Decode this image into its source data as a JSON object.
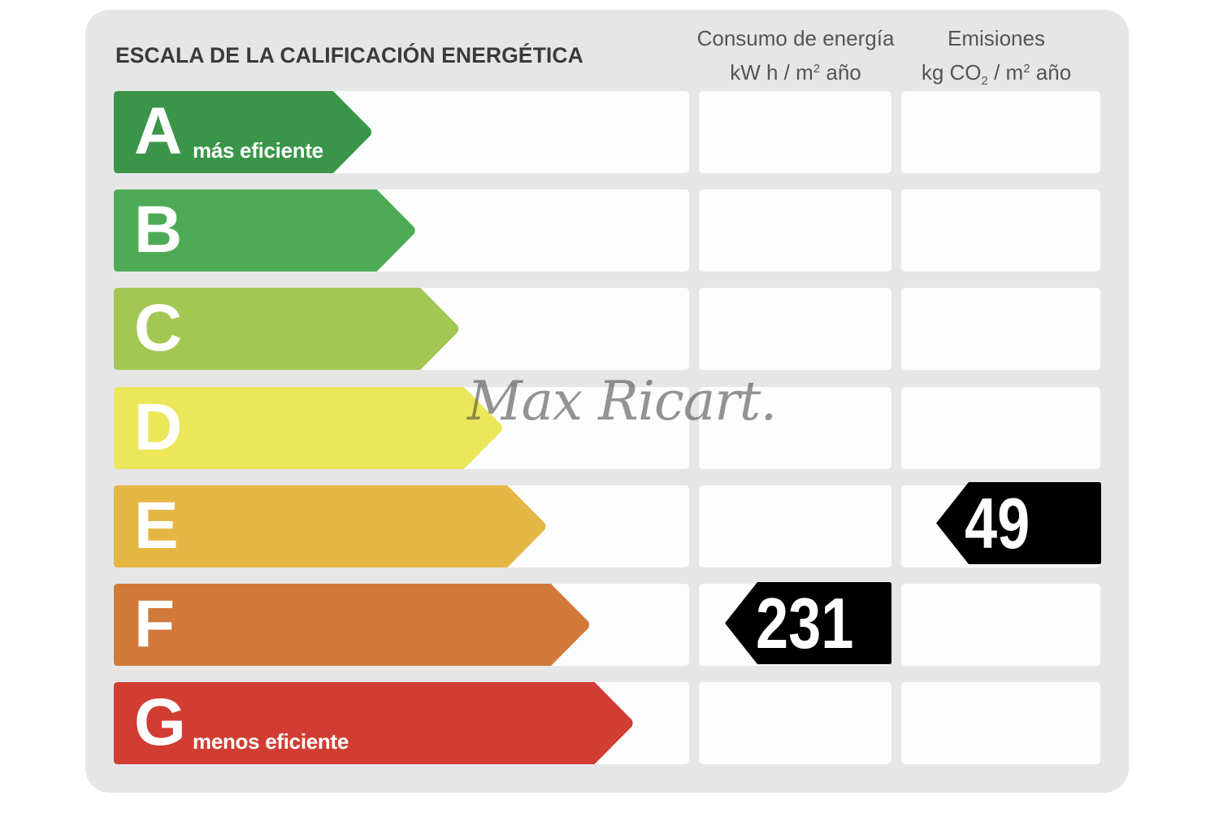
{
  "title": "ESCALA DE LA CALIFICACIÓN ENERGÉTICA",
  "columns": {
    "energy": {
      "line1": "Consumo de energía",
      "unit_pre": "kW h  / m",
      "unit_sup": "2",
      "unit_post": " año"
    },
    "emissions": {
      "line1": "Emisiones",
      "unit_pre": "kg CO",
      "unit_sub": "2",
      "unit_mid": "  / m",
      "unit_sup": "2",
      "unit_post": " año"
    }
  },
  "classes": [
    {
      "letter": "A",
      "label": "más eficiente",
      "color": "#3a9548"
    },
    {
      "letter": "B",
      "label": "",
      "color": "#4eab55"
    },
    {
      "letter": "C",
      "label": "",
      "color": "#a2c752"
    },
    {
      "letter": "D",
      "label": "",
      "color": "#ece75a"
    },
    {
      "letter": "E",
      "label": "",
      "color": "#e4b744"
    },
    {
      "letter": "F",
      "label": "",
      "color": "#d17a3a"
    },
    {
      "letter": "G",
      "label": "menos eficiente",
      "color": "#d13d33"
    }
  ],
  "rating": {
    "energy": {
      "class": "F",
      "value": "231"
    },
    "emissions": {
      "class": "E",
      "value": "49"
    }
  },
  "watermark": "Max Ricart."
}
